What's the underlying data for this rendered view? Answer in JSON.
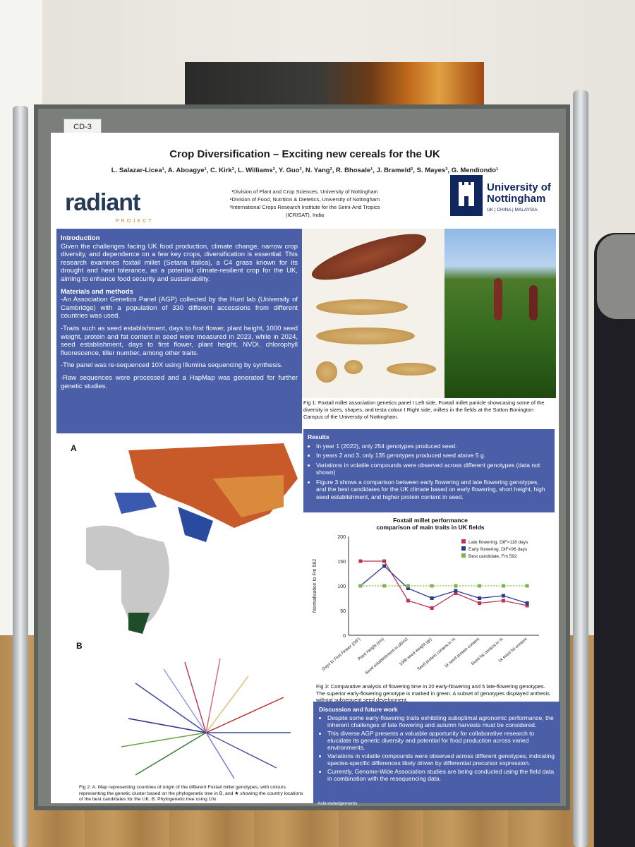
{
  "board_tag": "CD-3",
  "poster": {
    "title": "Crop Diversification – Exciting new cereals for the UK",
    "authors": "L. Salazar-Licea¹, A. Aboagye¹, C. Kirk², L. Williams², Y. Guo², N. Yang², R. Bhosale¹, J. Brameld², S. Mayes³, G. Mendiondo¹",
    "affiliations": [
      "¹Division of Plant and Crop Sciences, University of Nottingham",
      "²Division of Food, Nutrition & Dietetics, University of Nottingham",
      "³International Crops Research Institute for the Semi-Arid Tropics (ICRISAT), India"
    ],
    "logo_left": "radiant",
    "logo_left_sub": "PROJECT",
    "logo_right_name": "University of Nottingham",
    "logo_right_sub": "UK | CHINA | MALAYSIA",
    "intro_heading": "Introduction",
    "intro_text": "Given the challenges facing UK food production, climate change, narrow crop diversity, and dependence on a few key crops, diversification is essential. This research examines foxtail millet (Setaria italica), a C4 grass known for its drought and heat tolerance, as a potential climate-resilient crop for the UK, aiming to enhance food security and sustainability.",
    "methods_heading": "Materials and methods",
    "methods": [
      "-An Association Genetics Panel (AGP) collected by the Hunt lab (University of Cambridge) with a population of 330 different accessions from different countries was used.",
      "-Traits such as seed establishment, days to first flower, plant height, 1000 seed weight, protein and fat content in seed were measured in 2023, while in 2024, seed establishment, days to first flower, plant height, NVDI, chlorophyll fluorescence, tiller number, among other traits.",
      "-The panel was re-sequenced 10X using Illumina sequencing by synthesis.",
      "-Raw sequences were processed and a HapMap was generated for further genetic studies."
    ],
    "fig1_caption": "Fig 1: Foxtail millet association genetics panel I Left side, Foxtail millet panicle showcasing some of the diversity in sizes, shapes, and testa colour I Right side, millets in the fields at the Sutton Bonington Campus of the University of Nottingham.",
    "results_heading": "Results",
    "results": [
      "In year 1 (2022), only 254 genotypes produced seed.",
      "In years 2 and 3, only 135 genotypes produced seed above 5 g.",
      "Variations in volatile compounds were observed across different genotypes (data not shown)",
      "Figure 3 shows a comparison between early flowering and late flowering genotypes, and the best candidates for the UK climate based on early flowering, short height, high seed establishment, and higher protein content in seed."
    ],
    "map_label": "A",
    "tree_label": "B",
    "fig2_caption": "Fig 2: A. Map representing countries of origin of the different Foxtail millet genotypes, with colours representing the genetic cluster based on the phylogenetic tree in B, and ★ showing the country locations of the best candidates for the UK. B. Phylogenetic tree using 10x",
    "chart_title_1": "Foxtail millet performance",
    "chart_title_2": "comparison of main traits in UK fields",
    "fig3_caption": "Fig 3: Comparative analysis of flowering time in 20 early-flowering and 5 late-flowering genotypes. The superior early-flowering genotype is marked in green. A subset of genotypes displayed anthesis without subsequent seed development.",
    "discussion_heading": "Discussion and future work",
    "discussion": [
      "Despite some early-flowering traits exhibiting suboptimal agronomic performance, the inherent challenges of late flowering and autumn harvests must be considered.",
      "This diverse AGP presents a valuable opportunity for collaborative research to elucidate its genetic diversity and potential for food production across varied environments.",
      "Variations in volatile compounds were observed across different genotypes, indicating species-specific differences likely driven by differential precursor expression.",
      "Currently, Genome-Wide Association studies are being conducted using the field data in combination with the resequencing data."
    ],
    "ack_heading": "Acknowledgements"
  },
  "chart_data": {
    "type": "line",
    "title": "Foxtail millet performance comparison of main traits in UK fields",
    "ylabel": "Normalisation to Fm 592",
    "ylim": [
      0,
      200
    ],
    "categories": [
      "Days to First Flower (DtF)",
      "Plant Height (cm)",
      "Seed establishment in plt/m2",
      "1000 seed weight (gr)",
      "Seed protein content in %",
      "1k seed protein content",
      "Seed fat content in %",
      "1k seed fat content"
    ],
    "series": [
      {
        "name": "Late flowering, DtF>118 days",
        "color": "#c0334d",
        "values": [
          150,
          150,
          70,
          55,
          85,
          65,
          70,
          60
        ]
      },
      {
        "name": "Early flowering, DtF<96 days",
        "color": "#2b3a8c",
        "values": [
          100,
          140,
          95,
          75,
          90,
          75,
          80,
          65
        ]
      },
      {
        "name": "Best candidate, Fm 592",
        "color": "#7ab648",
        "values": [
          100,
          100,
          100,
          100,
          100,
          100,
          100,
          100
        ]
      }
    ]
  }
}
